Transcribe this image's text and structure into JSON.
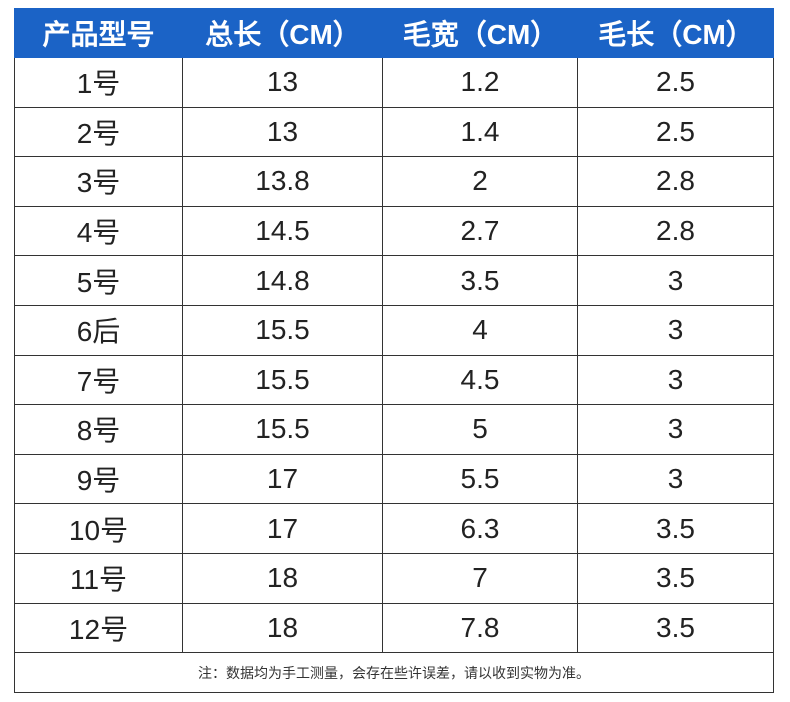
{
  "table": {
    "header": [
      "产品型号",
      "总长（CM）",
      "毛宽（CM）",
      "毛长（CM）"
    ],
    "rows": [
      [
        "1号",
        "13",
        "1.2",
        "2.5"
      ],
      [
        "2号",
        "13",
        "1.4",
        "2.5"
      ],
      [
        "3号",
        "13.8",
        "2",
        "2.8"
      ],
      [
        "4号",
        "14.5",
        "2.7",
        "2.8"
      ],
      [
        "5号",
        "14.8",
        "3.5",
        "3"
      ],
      [
        "6后",
        "15.5",
        "4",
        "3"
      ],
      [
        "7号",
        "15.5",
        "4.5",
        "3"
      ],
      [
        "8号",
        "15.5",
        "5",
        "3"
      ],
      [
        "9号",
        "17",
        "5.5",
        "3"
      ],
      [
        "10号",
        "17",
        "6.3",
        "3.5"
      ],
      [
        "11号",
        "18",
        "7",
        "3.5"
      ],
      [
        "12号",
        "18",
        "7.8",
        "3.5"
      ]
    ],
    "note": "注：数据均为手工测量，会存在些许误差，请以收到实物为准。"
  }
}
